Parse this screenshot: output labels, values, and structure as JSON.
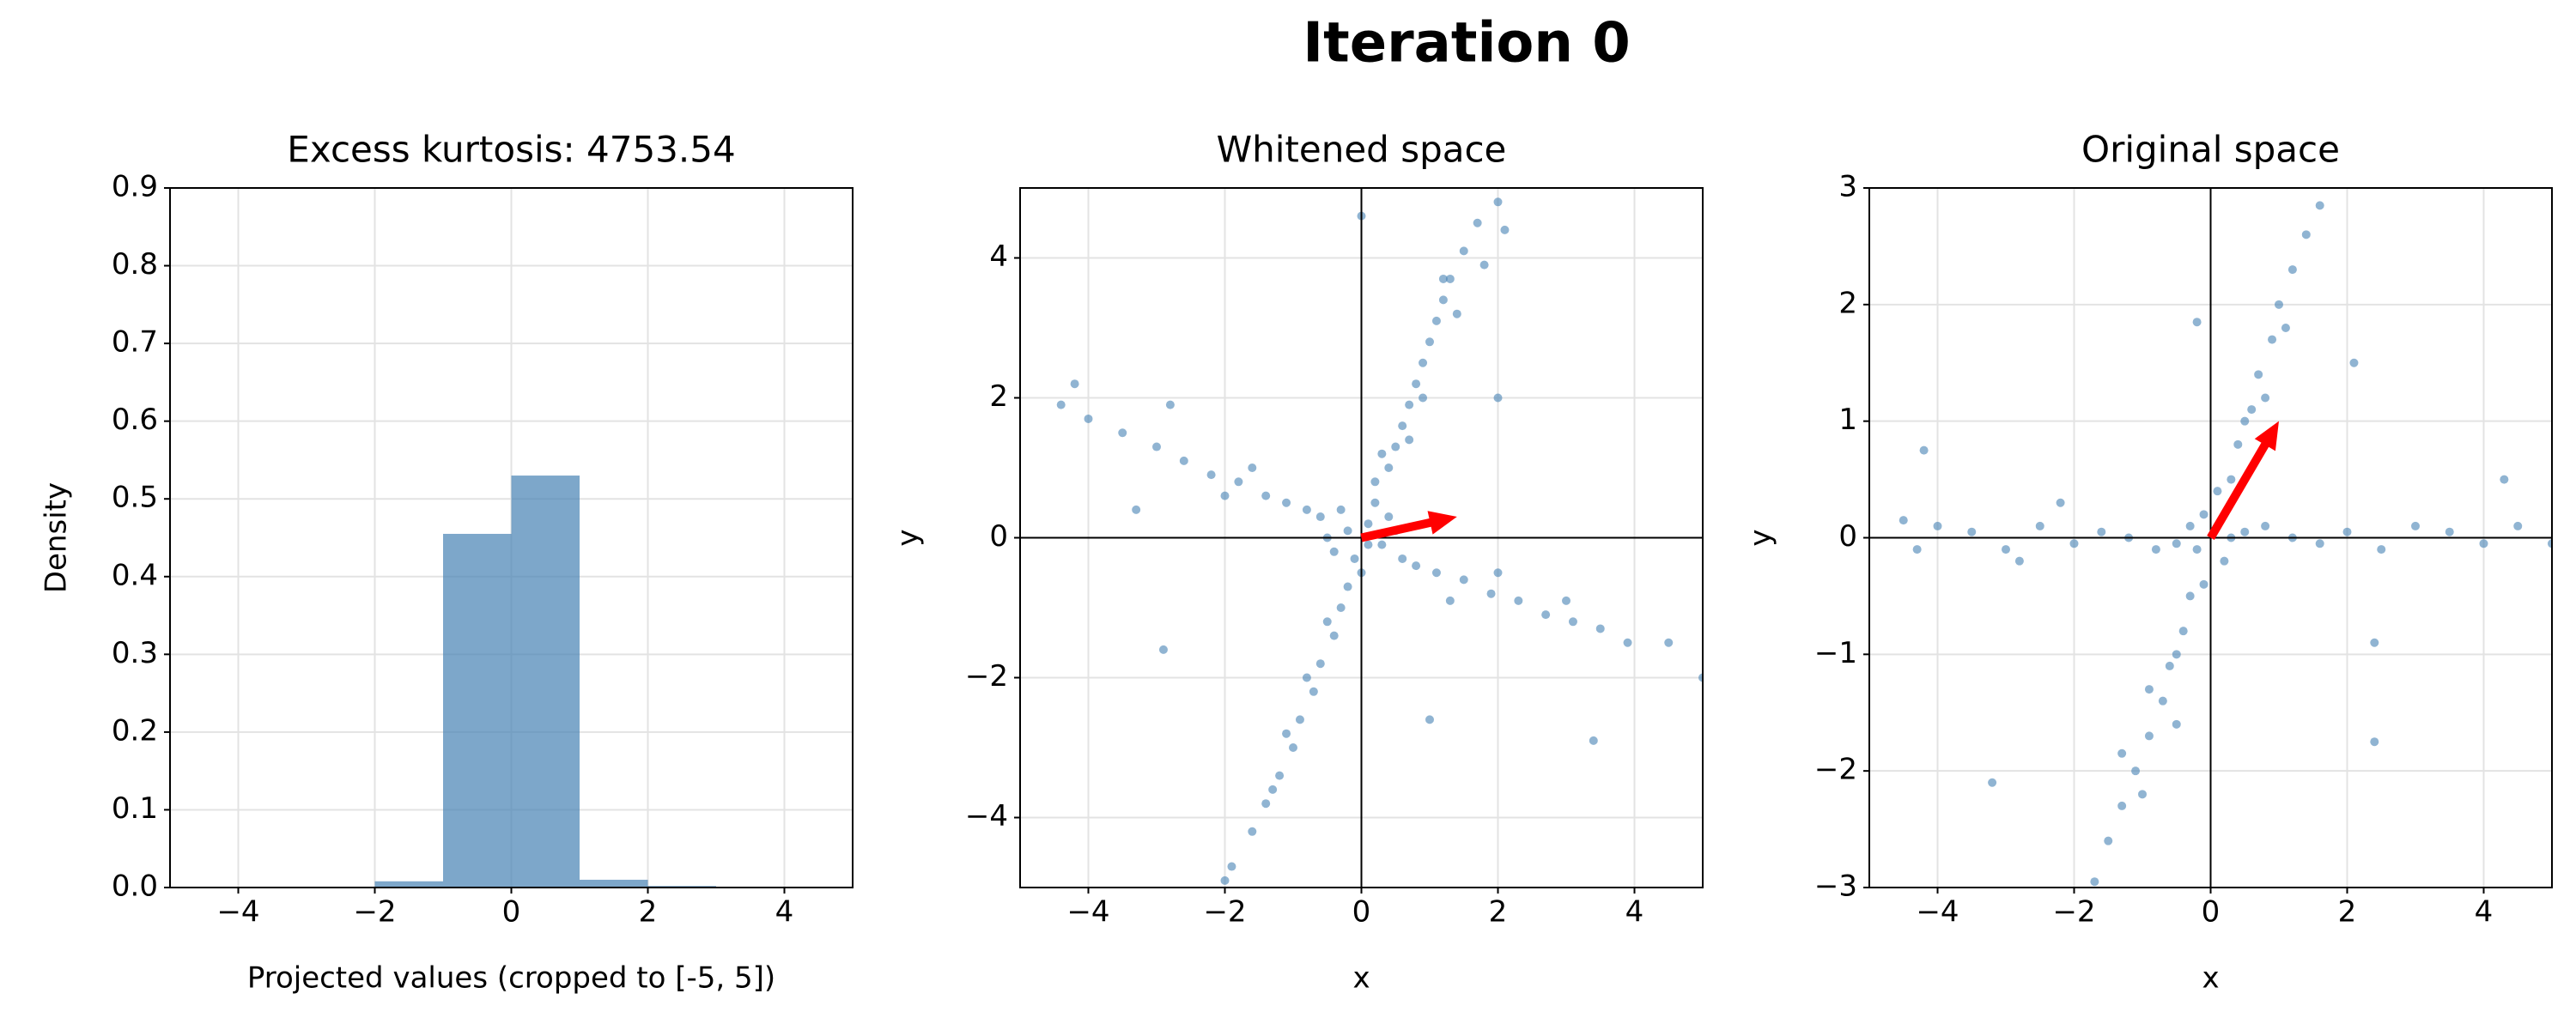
{
  "title": "Iteration 0",
  "chart_data": [
    {
      "type": "histogram",
      "title": "Excess kurtosis: 4753.54",
      "xlabel": "Projected values (cropped to [-5, 5])",
      "ylabel": "Density",
      "bins": [
        -5,
        -4,
        -3,
        -2,
        -1,
        0,
        1,
        2,
        3,
        4,
        5
      ],
      "values": [
        0,
        0,
        0,
        0.008,
        0.455,
        0.53,
        0.01,
        0.002,
        0,
        0
      ],
      "color": "#4682b4",
      "alpha": 0.7,
      "xlim": [
        -5,
        5
      ],
      "xticks": [
        {
          "value": -4,
          "label": "−4"
        },
        {
          "value": -2,
          "label": "−2"
        },
        0,
        2,
        4
      ],
      "ylim": [
        0,
        0.9
      ],
      "yticks": [
        {
          "value": 0,
          "label": "0.0"
        },
        0.1,
        0.2,
        0.3,
        0.4,
        0.5,
        0.6,
        0.7,
        0.8,
        0.9
      ],
      "grid": true
    },
    {
      "type": "scatter",
      "title": "Whitened space",
      "xlabel": "x",
      "ylabel": "y",
      "x": [
        0.1,
        -0.2,
        0.3,
        -0.1,
        0.2,
        -0.4,
        0.5,
        -0.3,
        0.0,
        0.4,
        -0.5,
        0.1,
        0.6,
        -0.6,
        0.2,
        -0.2,
        0.4,
        0.5,
        0.6,
        0.7,
        0.8,
        0.9,
        1.0,
        1.1,
        1.2,
        1.3,
        1.5,
        1.7,
        2.0,
        0.7,
        0.3,
        0.9,
        1.4,
        1.8,
        -0.3,
        -0.4,
        -0.6,
        -0.7,
        -0.9,
        -1.0,
        -1.2,
        -1.4,
        -1.6,
        -1.9,
        -2.0,
        -0.5,
        -0.8,
        -1.1,
        -1.3,
        -0.8,
        -1.1,
        -1.4,
        -1.8,
        -2.2,
        -2.6,
        -3.0,
        -3.5,
        -4.0,
        -4.4,
        -4.2,
        -2.8,
        -1.6,
        -2.0,
        -3.3,
        0.8,
        1.1,
        1.5,
        1.9,
        2.3,
        2.7,
        3.1,
        3.5,
        3.9,
        4.5,
        5.0,
        2.0,
        1.3,
        3.0,
        0.0,
        2.0,
        1.0,
        3.4,
        -2.9,
        1.2,
        2.1
      ],
      "values": [
        0.2,
        0.1,
        -0.1,
        -0.3,
        0.5,
        -0.2,
        0.1,
        0.4,
        -0.5,
        0.3,
        0.0,
        -0.1,
        -0.3,
        0.3,
        0.8,
        -0.7,
        1.0,
        1.3,
        1.6,
        1.9,
        2.2,
        2.5,
        2.8,
        3.1,
        3.4,
        3.7,
        4.1,
        4.5,
        4.8,
        1.4,
        1.2,
        2.0,
        3.2,
        3.9,
        -1.0,
        -1.4,
        -1.8,
        -2.2,
        -2.6,
        -3.0,
        -3.4,
        -3.8,
        -4.2,
        -4.7,
        -4.9,
        -1.2,
        -2.0,
        -2.8,
        -3.6,
        0.4,
        0.5,
        0.6,
        0.8,
        0.9,
        1.1,
        1.3,
        1.5,
        1.7,
        1.9,
        2.2,
        1.9,
        1.0,
        0.6,
        0.4,
        -0.4,
        -0.5,
        -0.6,
        -0.8,
        -0.9,
        -1.1,
        -1.2,
        -1.3,
        -1.5,
        -1.5,
        -2.0,
        -0.5,
        -0.9,
        -0.9,
        4.6,
        2.0,
        -2.6,
        -2.9,
        -1.6,
        3.7,
        4.4
      ],
      "color": "#4682b4",
      "alpha": 0.6,
      "arrow": {
        "x": 1.4,
        "y": 0.3,
        "color": "#ff0000"
      },
      "zero_lines": true,
      "xlim": [
        -5,
        5
      ],
      "xticks": [
        {
          "value": -4,
          "label": "−4"
        },
        {
          "value": -2,
          "label": "−2"
        },
        0,
        2,
        4
      ],
      "ylim": [
        -5,
        5
      ],
      "yticks": [
        {
          "value": -4,
          "label": "−4"
        },
        {
          "value": -2,
          "label": "−2"
        },
        0,
        2,
        4
      ],
      "grid": true
    },
    {
      "type": "scatter",
      "title": "Original space",
      "xlabel": "x",
      "ylabel": "y",
      "x": [
        0.1,
        -0.2,
        0.3,
        -0.1,
        0.2,
        -0.3,
        0.5,
        -0.5,
        0.1,
        -0.1,
        0.8,
        -0.8,
        0.3,
        0.4,
        0.6,
        0.7,
        0.9,
        1.0,
        1.2,
        1.4,
        1.6,
        0.5,
        0.8,
        1.1,
        -0.3,
        -0.4,
        -0.6,
        -0.7,
        -0.9,
        -1.1,
        -1.3,
        -1.5,
        -1.7,
        -0.5,
        -0.9,
        -1.0,
        -1.2,
        -1.6,
        -2.0,
        -2.5,
        -3.0,
        -3.5,
        -4.0,
        -4.5,
        -4.2,
        -4.3,
        -2.2,
        -2.8,
        1.2,
        1.6,
        2.0,
        2.5,
        3.0,
        3.5,
        4.0,
        4.5,
        5.0,
        4.3,
        2.4,
        2.4,
        2.1,
        -0.2,
        -3.2,
        -0.5,
        -1.3
      ],
      "values": [
        0.1,
        -0.1,
        0.0,
        0.2,
        -0.2,
        0.1,
        0.05,
        -0.05,
        0.4,
        -0.4,
        0.1,
        -0.1,
        0.5,
        0.8,
        1.1,
        1.4,
        1.7,
        2.0,
        2.3,
        2.6,
        2.85,
        1.0,
        1.2,
        1.8,
        -0.5,
        -0.8,
        -1.1,
        -1.4,
        -1.7,
        -2.0,
        -2.3,
        -2.6,
        -2.95,
        -1.0,
        -1.3,
        -2.2,
        0.0,
        0.05,
        -0.05,
        0.1,
        -0.1,
        0.05,
        0.1,
        0.15,
        0.75,
        -0.1,
        0.3,
        -0.2,
        0.0,
        -0.05,
        0.05,
        -0.1,
        0.1,
        0.05,
        -0.05,
        0.1,
        -0.05,
        0.5,
        -0.9,
        -1.75,
        1.5,
        1.85,
        -2.1,
        -1.6,
        -1.85
      ],
      "color": "#4682b4",
      "alpha": 0.6,
      "arrow": {
        "x": 1.0,
        "y": 1.0,
        "color": "#ff0000"
      },
      "zero_lines": true,
      "xlim": [
        -5,
        5
      ],
      "xticks": [
        {
          "value": -4,
          "label": "−4"
        },
        {
          "value": -2,
          "label": "−2"
        },
        0,
        2,
        4
      ],
      "ylim": [
        -3,
        3
      ],
      "yticks": [
        {
          "value": -3,
          "label": "−3"
        },
        {
          "value": -2,
          "label": "−2"
        },
        {
          "value": -1,
          "label": "−1"
        },
        0,
        1,
        2,
        3
      ],
      "grid": true
    }
  ]
}
